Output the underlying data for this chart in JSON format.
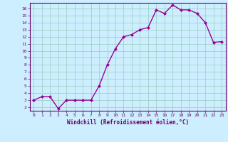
{
  "x": [
    0,
    1,
    2,
    3,
    4,
    5,
    6,
    7,
    8,
    9,
    10,
    11,
    12,
    13,
    14,
    15,
    16,
    17,
    18,
    19,
    20,
    21,
    22,
    23
  ],
  "y": [
    3,
    3.5,
    3.5,
    1.8,
    3,
    3,
    3,
    3,
    5,
    8,
    10.3,
    12,
    12.3,
    13,
    13.3,
    15.8,
    15.3,
    16.5,
    15.8,
    15.8,
    15.3,
    14,
    11.2,
    11.3
  ],
  "line_color": "#990099",
  "marker": "D",
  "marker_size": 2,
  "bg_color": "#cceeff",
  "grid_color": "#99ccbb",
  "xlabel": "Windchill (Refroidissement éolien,°C)",
  "ylabel_ticks": [
    2,
    3,
    4,
    5,
    6,
    7,
    8,
    9,
    10,
    11,
    12,
    13,
    14,
    15,
    16
  ],
  "xlim": [
    -0.5,
    23.5
  ],
  "ylim": [
    1.5,
    16.8
  ],
  "font_color": "#660066",
  "linewidth": 1.0
}
